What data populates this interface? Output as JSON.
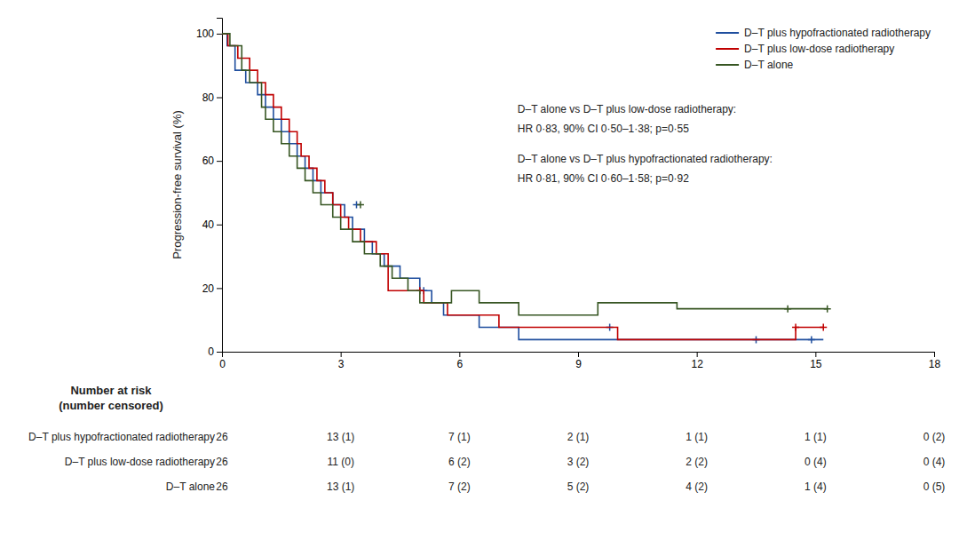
{
  "chart_data": {
    "type": "step",
    "ylabel": "Progression-free survival (%)",
    "xlim": [
      0,
      18
    ],
    "ylim": [
      0,
      105
    ],
    "xticks": [
      0,
      3,
      6,
      9,
      12,
      15,
      18
    ],
    "yticks": [
      0,
      20,
      40,
      60,
      80,
      100
    ],
    "grid": false,
    "legend": "upper-right",
    "series": [
      {
        "name": "D–T plus hypofractionated radiotherapy",
        "color": "#1f4e9e",
        "marker": "plus",
        "x": [
          0,
          0.13,
          0.13,
          0.33,
          0.33,
          0.6,
          0.6,
          0.9,
          0.9,
          1.1,
          1.1,
          1.3,
          1.3,
          1.5,
          1.5,
          1.7,
          1.7,
          1.9,
          1.9,
          2.1,
          2.1,
          2.3,
          2.3,
          2.5,
          2.5,
          2.8,
          2.8,
          3.1,
          3.1,
          3.3,
          3.3,
          3.6,
          3.6,
          3.8,
          3.8,
          4.1,
          4.1,
          4.5,
          4.5,
          5.0,
          5.0,
          5.3,
          5.3,
          5.6,
          5.6,
          6.5,
          6.5,
          7.5,
          7.5,
          15.2
        ],
        "values": [
          100,
          100,
          96.2,
          96.2,
          88.5,
          88.5,
          84.6,
          84.6,
          80.8,
          80.8,
          76.9,
          76.9,
          73.1,
          73.1,
          69.2,
          69.2,
          65.4,
          65.4,
          61.5,
          61.5,
          57.7,
          57.7,
          53.8,
          53.8,
          50.0,
          50.0,
          46.2,
          46.2,
          42.3,
          42.3,
          38.5,
          38.5,
          34.6,
          34.6,
          30.8,
          30.8,
          26.9,
          26.9,
          23.1,
          23.1,
          19.2,
          19.2,
          15.4,
          15.4,
          11.5,
          11.5,
          7.7,
          7.7,
          3.8,
          3.8
        ],
        "censored": {
          "x": [
            3.4,
            5.1,
            9.8,
            13.5,
            14.9
          ],
          "values": [
            46.2,
            19.2,
            7.7,
            3.8,
            3.8
          ]
        }
      },
      {
        "name": "D–T plus low-dose radiotherapy",
        "color": "#c00000",
        "marker": "plus",
        "x": [
          0,
          0.15,
          0.15,
          0.4,
          0.4,
          0.7,
          0.7,
          0.9,
          0.9,
          1.1,
          1.1,
          1.3,
          1.3,
          1.5,
          1.5,
          1.7,
          1.7,
          1.9,
          1.9,
          2.0,
          2.0,
          2.2,
          2.2,
          2.4,
          2.4,
          2.6,
          2.6,
          2.8,
          2.8,
          3.0,
          3.0,
          3.2,
          3.2,
          3.5,
          3.5,
          3.9,
          3.9,
          4.2,
          4.2,
          5.1,
          5.1,
          5.7,
          5.7,
          7.0,
          7.0,
          10.0,
          10.0,
          14.5,
          14.5,
          15.2
        ],
        "values": [
          100,
          100,
          96.2,
          96.2,
          92.3,
          92.3,
          88.5,
          88.5,
          84.6,
          84.6,
          80.8,
          80.8,
          76.9,
          76.9,
          73.1,
          73.1,
          69.2,
          69.2,
          65.4,
          65.4,
          61.5,
          61.5,
          57.7,
          57.7,
          53.8,
          53.8,
          50.0,
          50.0,
          46.2,
          46.2,
          42.3,
          42.3,
          38.5,
          38.5,
          34.6,
          34.6,
          30.8,
          30.8,
          19.2,
          19.2,
          15.4,
          15.4,
          11.5,
          11.5,
          7.7,
          7.7,
          3.8,
          3.8,
          7.7,
          7.7
        ],
        "censored": {
          "x": [
            5.0,
            14.5,
            15.2
          ],
          "values": [
            19.2,
            7.7,
            7.7
          ]
        }
      },
      {
        "name": "D–T alone",
        "color": "#375623",
        "marker": "plus",
        "x": [
          0,
          0.2,
          0.2,
          0.5,
          0.5,
          0.7,
          0.7,
          1.0,
          1.0,
          1.1,
          1.1,
          1.3,
          1.3,
          1.5,
          1.5,
          1.7,
          1.7,
          1.9,
          1.9,
          2.1,
          2.1,
          2.3,
          2.3,
          2.5,
          2.5,
          2.8,
          2.8,
          3.0,
          3.0,
          3.3,
          3.3,
          3.6,
          3.6,
          4.0,
          4.0,
          4.3,
          4.3,
          4.7,
          4.7,
          5.0,
          5.0,
          5.5,
          5.8,
          5.8,
          6.5,
          6.5,
          7.5,
          7.5,
          9.5,
          9.5,
          11.5,
          11.5,
          14.5,
          15.3
        ],
        "values": [
          100,
          100,
          96.2,
          96.2,
          88.5,
          88.5,
          84.6,
          84.6,
          76.9,
          76.9,
          73.1,
          73.1,
          69.2,
          69.2,
          65.4,
          65.4,
          61.5,
          61.5,
          57.7,
          57.7,
          53.8,
          53.8,
          50.0,
          50.0,
          46.2,
          46.2,
          42.3,
          42.3,
          38.5,
          38.5,
          34.6,
          34.6,
          30.8,
          30.8,
          26.9,
          26.9,
          23.1,
          23.1,
          19.2,
          19.2,
          15.4,
          15.4,
          15.4,
          19.2,
          19.2,
          15.4,
          15.4,
          11.5,
          11.5,
          15.4,
          15.4,
          13.5,
          13.5,
          13.5
        ],
        "censored": {
          "x": [
            3.5,
            14.3,
            15.3
          ],
          "values": [
            46.2,
            13.5,
            13.5
          ]
        }
      }
    ],
    "annotations": [
      "D–T alone vs D–T plus low-dose radiotherapy:",
      "HR 0·83, 90% CI 0·50–1·38; p=0·55",
      "D–T alone vs D–T plus hypofractionated radiotherapy:",
      "HR 0·81, 90% CI 0·60–1·58; p=0·92"
    ],
    "risk_table": {
      "header": [
        "Number at risk",
        "(number censored)"
      ],
      "x": [
        0,
        3,
        6,
        9,
        12,
        15,
        18
      ],
      "rows": [
        {
          "label": "D–T plus hypofractionated radiotherapy",
          "values": [
            "26",
            "13 (1)",
            "7 (1)",
            "2 (1)",
            "1 (1)",
            "1 (1)",
            "0 (2)"
          ]
        },
        {
          "label": "D–T plus low-dose radiotherapy",
          "values": [
            "26",
            "11 (0)",
            "6 (2)",
            "3 (2)",
            "2 (2)",
            "0 (4)",
            "0 (4)"
          ]
        },
        {
          "label": "D–T alone",
          "values": [
            "26",
            "13 (1)",
            "7 (2)",
            "5 (2)",
            "4 (2)",
            "1 (4)",
            "0 (5)"
          ]
        }
      ]
    }
  }
}
